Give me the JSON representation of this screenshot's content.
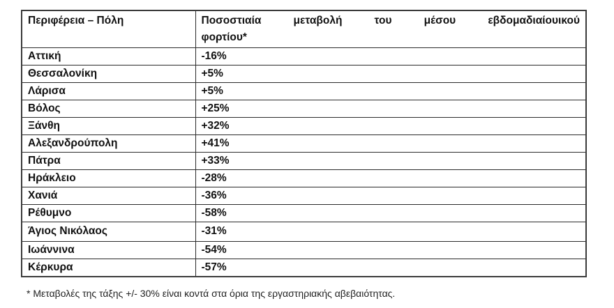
{
  "table": {
    "headers": [
      "Περιφέρεια – Πόλη",
      "Ποσοστιαία μεταβολή του μέσου εβδομαδιαίουικού φορτίου*"
    ],
    "header2_line1_words": [
      "Ποσοστιαία",
      "μεταβολή",
      "του",
      "μέσου",
      "εβδομαδιαίουικού"
    ],
    "header2_line2": "φορτίου*",
    "rows": [
      {
        "region": "Αττική",
        "change": "-16%"
      },
      {
        "region": "Θεσσαλονίκη",
        "change": "+5%"
      },
      {
        "region": "Λάρισα",
        "change": "+5%"
      },
      {
        "region": "Βόλος",
        "change": "+25%"
      },
      {
        "region": "Ξάνθη",
        "change": "+32%"
      },
      {
        "region": "Αλεξανδρούπολη",
        "change": "+41%"
      },
      {
        "region": "Πάτρα",
        "change": "+33%"
      },
      {
        "region": "Ηράκλειο",
        "change": "-28%"
      },
      {
        "region": "Χανιά",
        "change": "-36%"
      },
      {
        "region": "Ρέθυμνο",
        "change": "-58%"
      },
      {
        "region": "Άγιος Νικόλαος",
        "change": "-31%"
      },
      {
        "region": "Ιωάννινα",
        "change": "-54%"
      },
      {
        "region": "Κέρκυρα",
        "change": "-57%"
      }
    ]
  },
  "footnote": "* Μεταβολές της τάξης +/- 30% είναι κοντά στα όρια της εργαστηριακής αβεβαιότητας."
}
